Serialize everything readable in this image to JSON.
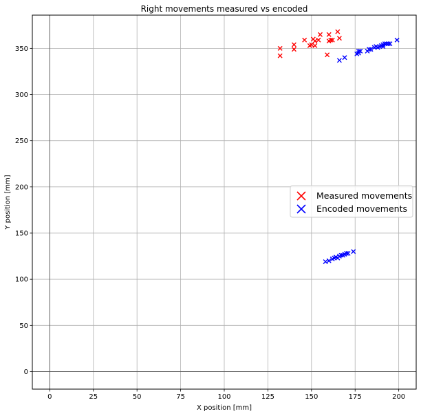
{
  "chart_data": {
    "type": "scatter",
    "title": "Right movements measured vs encoded",
    "xlabel": "X position [mm]",
    "ylabel": "Y position [mm]",
    "xlim": [
      -10,
      210
    ],
    "ylim": [
      -19,
      386
    ],
    "xticks": [
      0,
      25,
      50,
      75,
      100,
      125,
      150,
      175,
      200
    ],
    "yticks": [
      0,
      50,
      100,
      150,
      200,
      250,
      300,
      350
    ],
    "grid": true,
    "legend": {
      "position": "center-right"
    },
    "series": [
      {
        "name": "Measured movements",
        "color": "#ff0000",
        "marker": "x",
        "points": [
          [
            132,
            350
          ],
          [
            132,
            342
          ],
          [
            140,
            354
          ],
          [
            140,
            349
          ],
          [
            146,
            359
          ],
          [
            149,
            353
          ],
          [
            150,
            354
          ],
          [
            151,
            360
          ],
          [
            152,
            353
          ],
          [
            152,
            358
          ],
          [
            154,
            359
          ],
          [
            155,
            365
          ],
          [
            159,
            343
          ],
          [
            160,
            365
          ],
          [
            160,
            358
          ],
          [
            161,
            359
          ],
          [
            162,
            359
          ],
          [
            165,
            368
          ],
          [
            166,
            361
          ]
        ]
      },
      {
        "name": "Encoded movements",
        "color": "#0000ff",
        "marker": "x",
        "points": [
          [
            158,
            119
          ],
          [
            160,
            120
          ],
          [
            162,
            122
          ],
          [
            163,
            123
          ],
          [
            164,
            124
          ],
          [
            165,
            123
          ],
          [
            166,
            125
          ],
          [
            167,
            126
          ],
          [
            168,
            126
          ],
          [
            169,
            127
          ],
          [
            170,
            128
          ],
          [
            171,
            128
          ],
          [
            174,
            130
          ],
          [
            166,
            337
          ],
          [
            169,
            340
          ],
          [
            176,
            344
          ],
          [
            177,
            345
          ],
          [
            177,
            347
          ],
          [
            178,
            347
          ],
          [
            182,
            347
          ],
          [
            183,
            349
          ],
          [
            184,
            349
          ],
          [
            186,
            351
          ],
          [
            187,
            352
          ],
          [
            188,
            351
          ],
          [
            189,
            352
          ],
          [
            190,
            353
          ],
          [
            191,
            352
          ],
          [
            191,
            354
          ],
          [
            192,
            355
          ],
          [
            193,
            355
          ],
          [
            194,
            355
          ],
          [
            195,
            355
          ],
          [
            199,
            359
          ]
        ]
      }
    ]
  }
}
